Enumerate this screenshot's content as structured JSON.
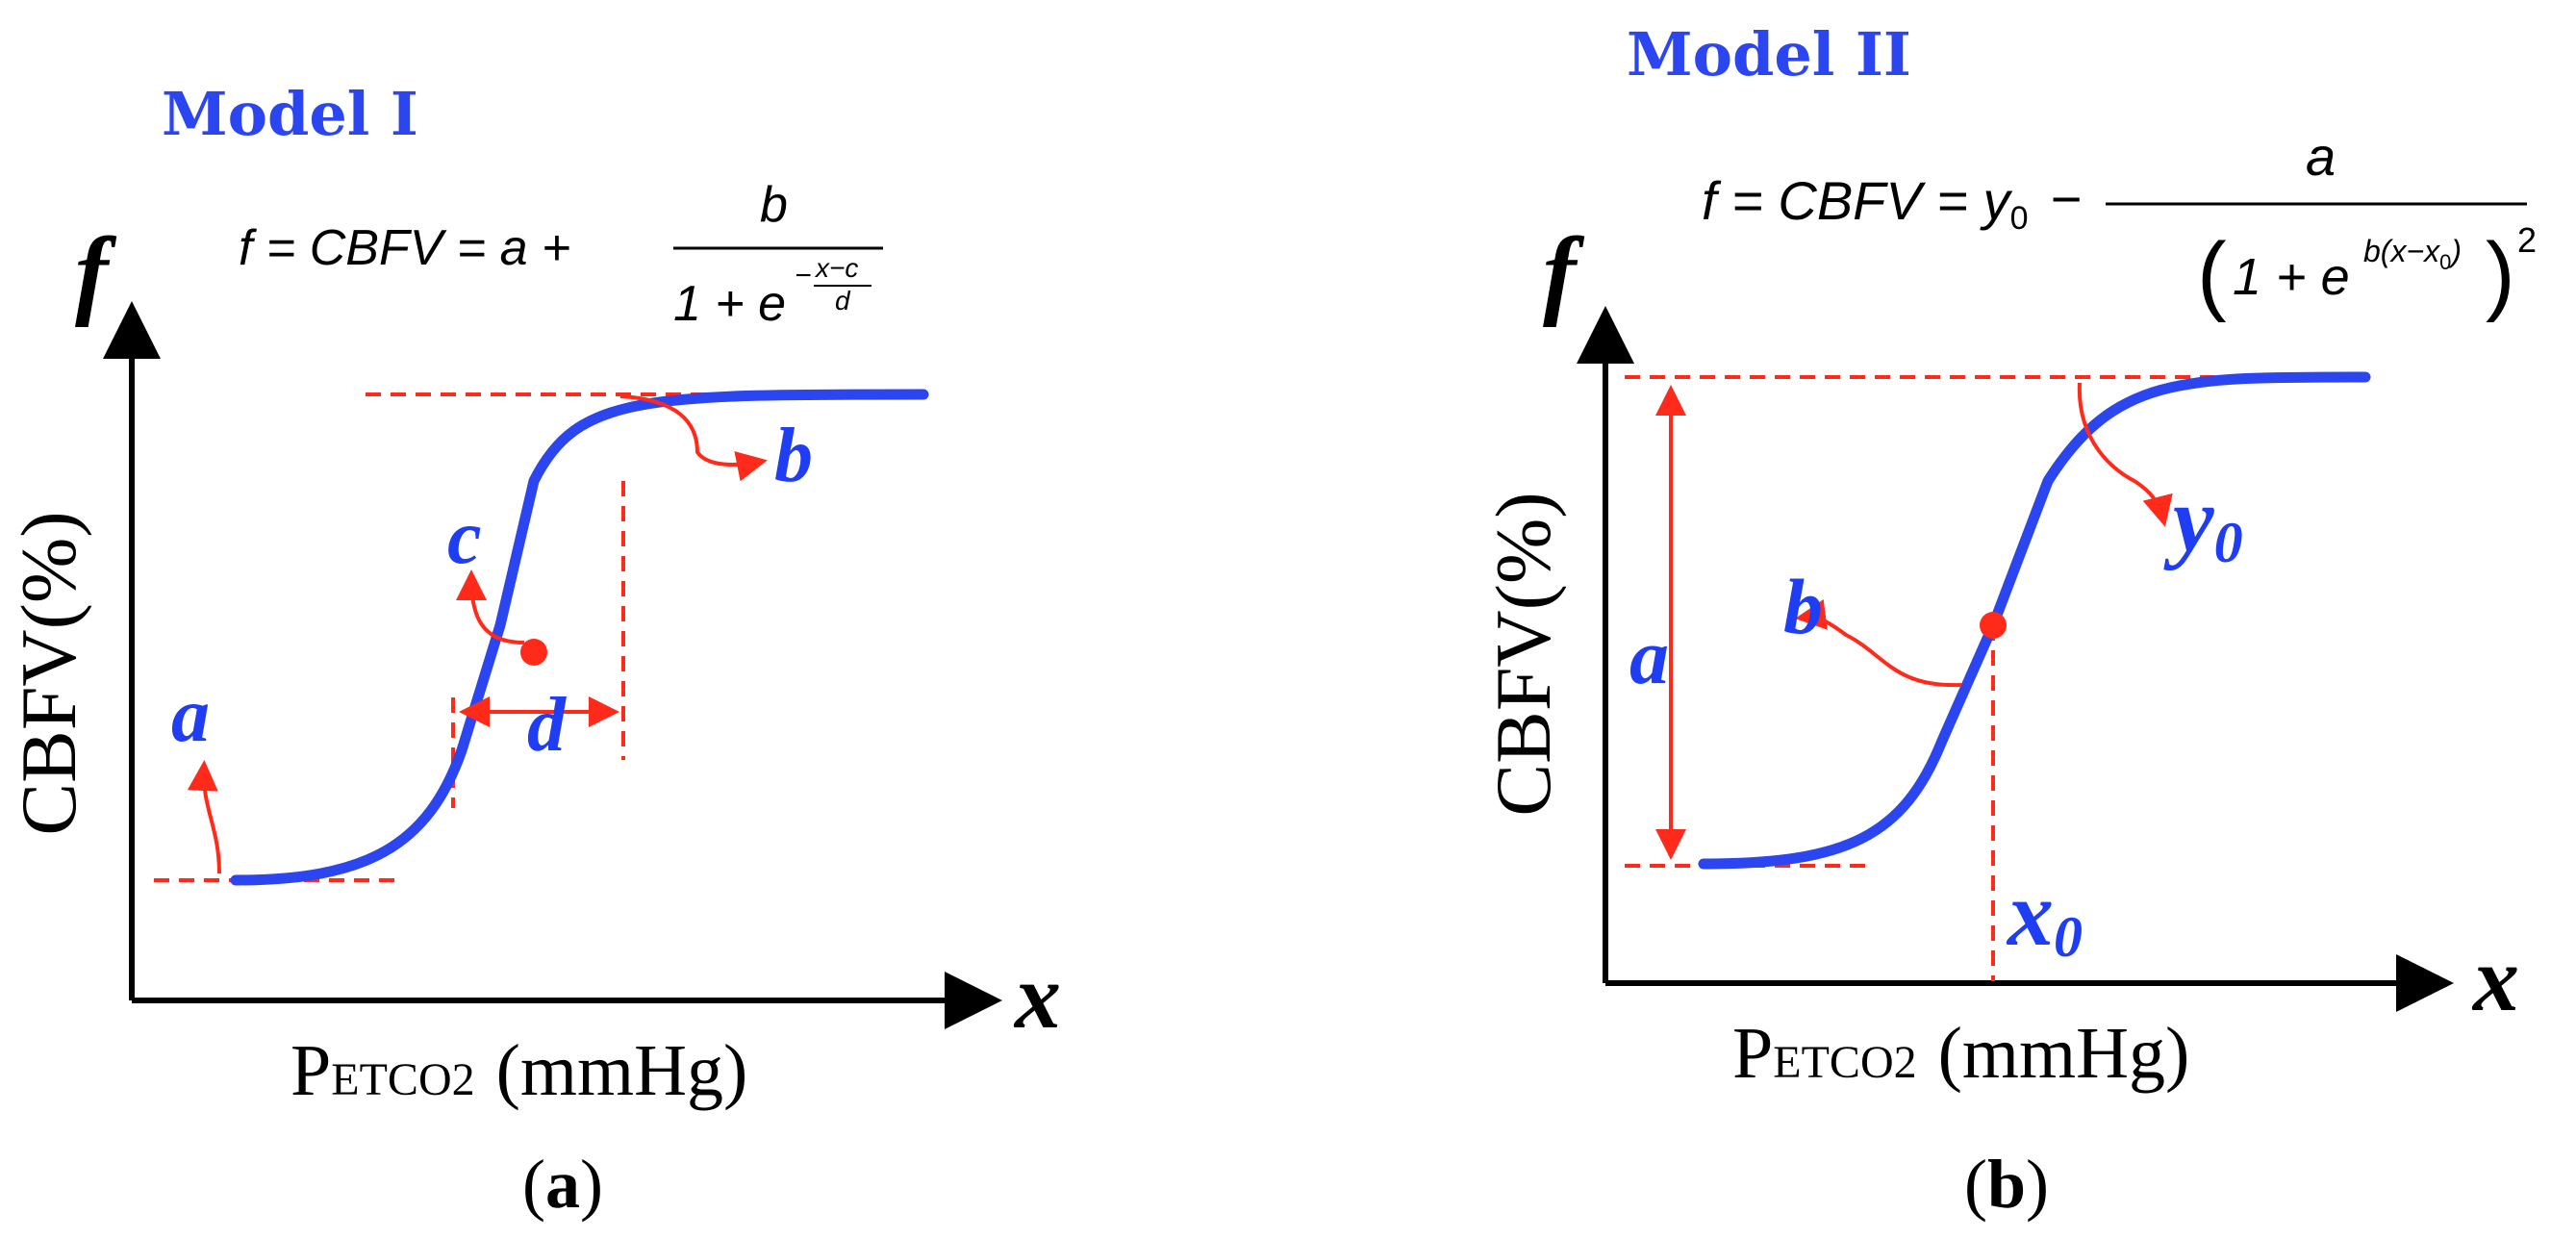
{
  "panel_a": {
    "title": "Model I",
    "formula": {
      "lhs": "f = CBFV = a +",
      "numerator": "b",
      "denominator_base": "1 + e",
      "exponent_sign": "−",
      "exponent_num": "x−c",
      "exponent_den": "d"
    },
    "y_axis_symbol": "f",
    "x_axis_symbol": "x",
    "y_label": "CBFV(%)",
    "x_label_main": "P",
    "x_label_sub": "ETCO2",
    "x_label_unit": "(mmHg)",
    "params": {
      "a": "a",
      "b": "b",
      "c": "c",
      "d": "d"
    },
    "caption_open": "(",
    "caption_letter": "a",
    "caption_close": ")"
  },
  "panel_b": {
    "title": "Model II",
    "formula": {
      "lhs": "f = CBFV = y",
      "lhs_sub": "0",
      "minus": "−",
      "numerator": "a",
      "denominator_base": "1 + e",
      "exponent": "b(x−x",
      "exponent_sub": "0",
      "exponent_close": ")",
      "power": "2"
    },
    "y_axis_symbol": "f",
    "x_axis_symbol": "x",
    "y_label": "CBFV(%)",
    "x_label_main": "P",
    "x_label_sub": "ETCO2",
    "x_label_unit": "(mmHg)",
    "params": {
      "a": "a",
      "b": "b",
      "y0": "y",
      "y0_sub": "0",
      "x0": "x",
      "x0_sub": "0"
    },
    "caption_open": "(",
    "caption_letter": "b",
    "caption_close": ")"
  },
  "colors": {
    "curve": "#2b45f0",
    "guides": "#ff2a1a",
    "param_text": "#1f3df2",
    "axis": "#000000"
  }
}
